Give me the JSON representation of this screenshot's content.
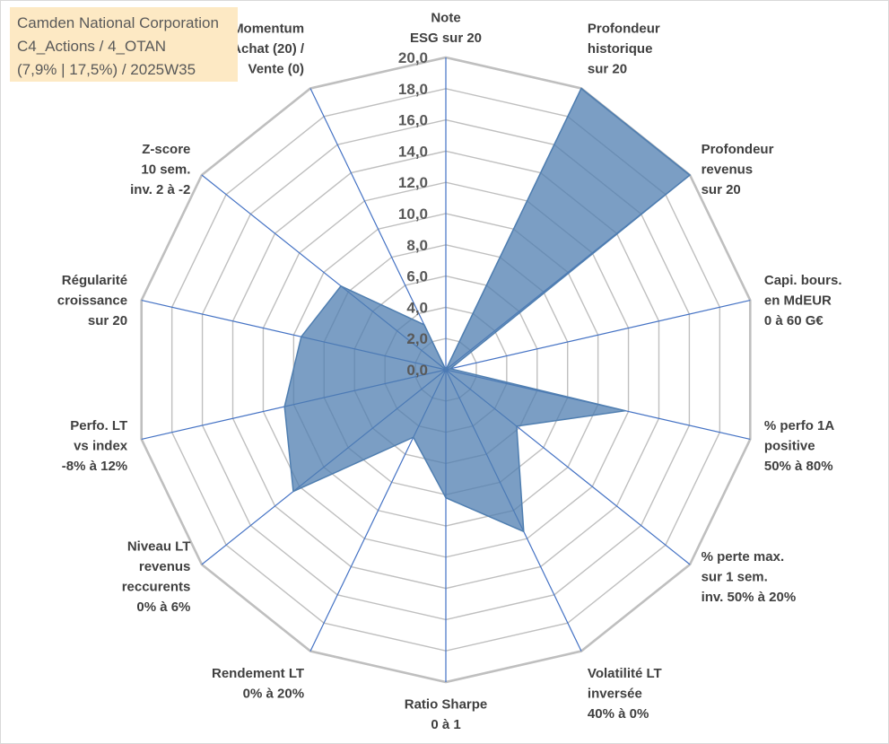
{
  "header_box": {
    "line1": "Camden National Corporation",
    "line2": "C4_Actions / 4_OTAN",
    "line3": "(7,9% | 17,5%) / 2025W35"
  },
  "chart_data": {
    "type": "radar",
    "rmin": 0,
    "rmax": 20,
    "tick_step": 2,
    "tick_labels": [
      "0,0",
      "2,0",
      "4,0",
      "6,0",
      "8,0",
      "10,0",
      "12,0",
      "14,0",
      "16,0",
      "18,0",
      "20,0"
    ],
    "axes": [
      {
        "label": [
          "Note",
          "ESG sur 20"
        ]
      },
      {
        "label": [
          "Profondeur",
          "historique",
          "sur 20"
        ]
      },
      {
        "label": [
          "Profondeur",
          "revenus",
          "sur 20"
        ]
      },
      {
        "label": [
          "Capi. bours.",
          "en MdEUR",
          "0 à 60 G€"
        ]
      },
      {
        "label": [
          "% perfo 1A",
          "positive",
          "50% à 80%"
        ]
      },
      {
        "label": [
          "% perte max.",
          "sur 1 sem.",
          "inv. 50% à 20%"
        ]
      },
      {
        "label": [
          "Volatilité LT",
          "inversée",
          "40% à 0%"
        ]
      },
      {
        "label": [
          "Ratio Sharpe",
          "0 à 1"
        ]
      },
      {
        "label": [
          "Rendement LT",
          "0% à 20%"
        ]
      },
      {
        "label": [
          "Niveau LT",
          "revenus",
          "reccurents",
          "0% à 6%"
        ]
      },
      {
        "label": [
          "Perfo. LT",
          "vs index",
          "-8% à 12%"
        ]
      },
      {
        "label": [
          "Régularité",
          "croissance",
          "sur 20"
        ]
      },
      {
        "label": [
          "Z-score",
          "10 sem.",
          "inv. 2 à -2"
        ]
      },
      {
        "label": [
          "Momentum",
          "Achat (20) /",
          "Vente (0)"
        ]
      }
    ],
    "series": [
      {
        "values": [
          0,
          20,
          20,
          0.3,
          11.8,
          5.8,
          11.5,
          8.2,
          4.8,
          12.5,
          10.6,
          9.5,
          8.6,
          3.2
        ],
        "color": "#4f7eb0",
        "fill_opacity": 0.75
      }
    ],
    "grid": true,
    "grid_color": "#bfbfbf",
    "spoke_color": "#4472c4"
  }
}
